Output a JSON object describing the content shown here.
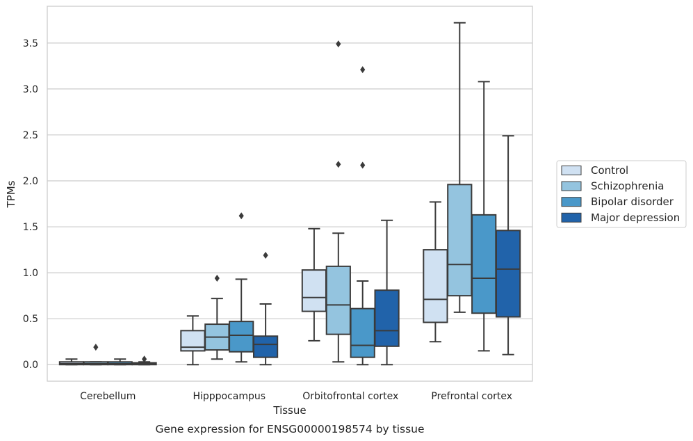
{
  "chart_data": {
    "type": "box",
    "caption": "Gene expression for ENSG00000198574 by tissue",
    "xlabel": "Tissue",
    "ylabel": "TPMs",
    "ylim": [
      -0.18,
      3.9
    ],
    "yticks": [
      "0.0",
      "0.5",
      "1.0",
      "1.5",
      "2.0",
      "2.5",
      "3.0",
      "3.5"
    ],
    "grid": "horizontal",
    "legend_position": "right",
    "categories": [
      "Cerebellum",
      "Hipppocampus",
      "Orbitofrontal cortex",
      "Prefrontal cortex"
    ],
    "series": [
      {
        "name": "Control",
        "color": "#d0e1f2",
        "boxes": [
          {
            "whislo": 0.0,
            "q1": 0.0,
            "med": 0.01,
            "q3": 0.03,
            "whishi": 0.06,
            "fliers": []
          },
          {
            "whislo": 0.0,
            "q1": 0.15,
            "med": 0.19,
            "q3": 0.37,
            "whishi": 0.53,
            "fliers": []
          },
          {
            "whislo": 0.26,
            "q1": 0.58,
            "med": 0.73,
            "q3": 1.03,
            "whishi": 1.48,
            "fliers": []
          },
          {
            "whislo": 0.25,
            "q1": 0.46,
            "med": 0.71,
            "q3": 1.25,
            "whishi": 1.77,
            "fliers": []
          }
        ]
      },
      {
        "name": "Schizophrenia",
        "color": "#94c4df",
        "boxes": [
          {
            "whislo": 0.0,
            "q1": 0.0,
            "med": 0.01,
            "q3": 0.03,
            "whishi": 0.03,
            "fliers": [
              0.19
            ]
          },
          {
            "whislo": 0.06,
            "q1": 0.16,
            "med": 0.3,
            "q3": 0.44,
            "whishi": 0.72,
            "fliers": [
              0.94
            ]
          },
          {
            "whislo": 0.03,
            "q1": 0.33,
            "med": 0.65,
            "q3": 1.07,
            "whishi": 1.43,
            "fliers": [
              2.18,
              3.49
            ]
          },
          {
            "whislo": 0.57,
            "q1": 0.75,
            "med": 1.09,
            "q3": 1.96,
            "whishi": 3.72,
            "fliers": []
          }
        ]
      },
      {
        "name": "Bipolar disorder",
        "color": "#4a98c9",
        "boxes": [
          {
            "whislo": 0.0,
            "q1": 0.0,
            "med": 0.01,
            "q3": 0.03,
            "whishi": 0.06,
            "fliers": []
          },
          {
            "whislo": 0.03,
            "q1": 0.14,
            "med": 0.32,
            "q3": 0.47,
            "whishi": 0.93,
            "fliers": [
              1.62
            ]
          },
          {
            "whislo": 0.0,
            "q1": 0.08,
            "med": 0.21,
            "q3": 0.61,
            "whishi": 0.91,
            "fliers": [
              2.17,
              3.21
            ]
          },
          {
            "whislo": 0.15,
            "q1": 0.56,
            "med": 0.94,
            "q3": 1.63,
            "whishi": 3.08,
            "fliers": []
          }
        ]
      },
      {
        "name": "Major depression",
        "color": "#2163aa",
        "boxes": [
          {
            "whislo": 0.0,
            "q1": 0.0,
            "med": 0.01,
            "q3": 0.02,
            "whishi": 0.03,
            "fliers": [
              0.06
            ]
          },
          {
            "whislo": 0.0,
            "q1": 0.08,
            "med": 0.22,
            "q3": 0.31,
            "whishi": 0.66,
            "fliers": [
              1.19
            ]
          },
          {
            "whislo": 0.0,
            "q1": 0.2,
            "med": 0.37,
            "q3": 0.81,
            "whishi": 1.57,
            "fliers": []
          },
          {
            "whislo": 0.11,
            "q1": 0.52,
            "med": 1.04,
            "q3": 1.46,
            "whishi": 2.49,
            "fliers": []
          }
        ]
      }
    ]
  }
}
